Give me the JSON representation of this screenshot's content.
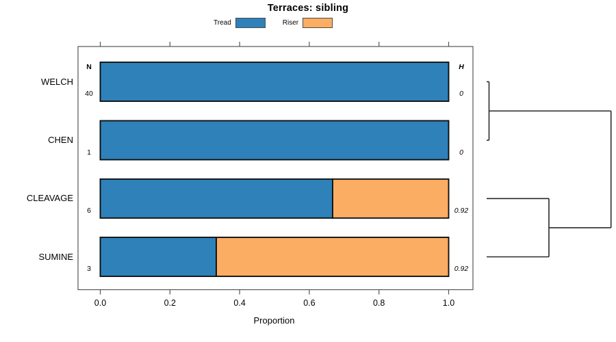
{
  "title": "Terraces: sibling",
  "legend": {
    "items": [
      {
        "label": "Tread",
        "color": "#2E81B9"
      },
      {
        "label": "Riser",
        "color": "#FBAD63"
      }
    ]
  },
  "chart_data": {
    "type": "bar",
    "subtype": "horizontal_stacked_proportion_with_dendrogram",
    "title": "Terraces: sibling",
    "categories": [
      "WELCH",
      "CHEN",
      "CLEAVAGE",
      "SUMINE"
    ],
    "series": [
      {
        "name": "Tread",
        "color": "#2E81B9",
        "values": [
          1.0,
          1.0,
          0.667,
          0.333
        ]
      },
      {
        "name": "Riser",
        "color": "#FBAD63",
        "values": [
          0.0,
          0.0,
          0.333,
          0.667
        ]
      }
    ],
    "columns": {
      "n": {
        "header": "N",
        "values": [
          "40",
          "1",
          "6",
          "3"
        ]
      },
      "h": {
        "header": "H",
        "values": [
          "0",
          "0",
          "0.92",
          "0.92"
        ]
      }
    },
    "xlabel": "Proportion",
    "xlim": [
      0.0,
      1.0
    ],
    "xticks": [
      "0.0",
      "0.2",
      "0.4",
      "0.6",
      "0.8",
      "1.0"
    ],
    "grid": false,
    "legend_position": "top-center",
    "axis_box": true,
    "dendrogram": {
      "side": "right",
      "leaves": [
        "WELCH",
        "CHEN",
        "CLEAVAGE",
        "SUMINE"
      ],
      "merges": [
        {
          "children": [
            "WELCH",
            "CHEN"
          ],
          "height": 0
        },
        {
          "children": [
            "CLEAVAGE",
            "SUMINE"
          ],
          "height": 0.92
        },
        {
          "children": [
            "merge-0",
            "merge-1"
          ],
          "height": null
        }
      ]
    }
  }
}
